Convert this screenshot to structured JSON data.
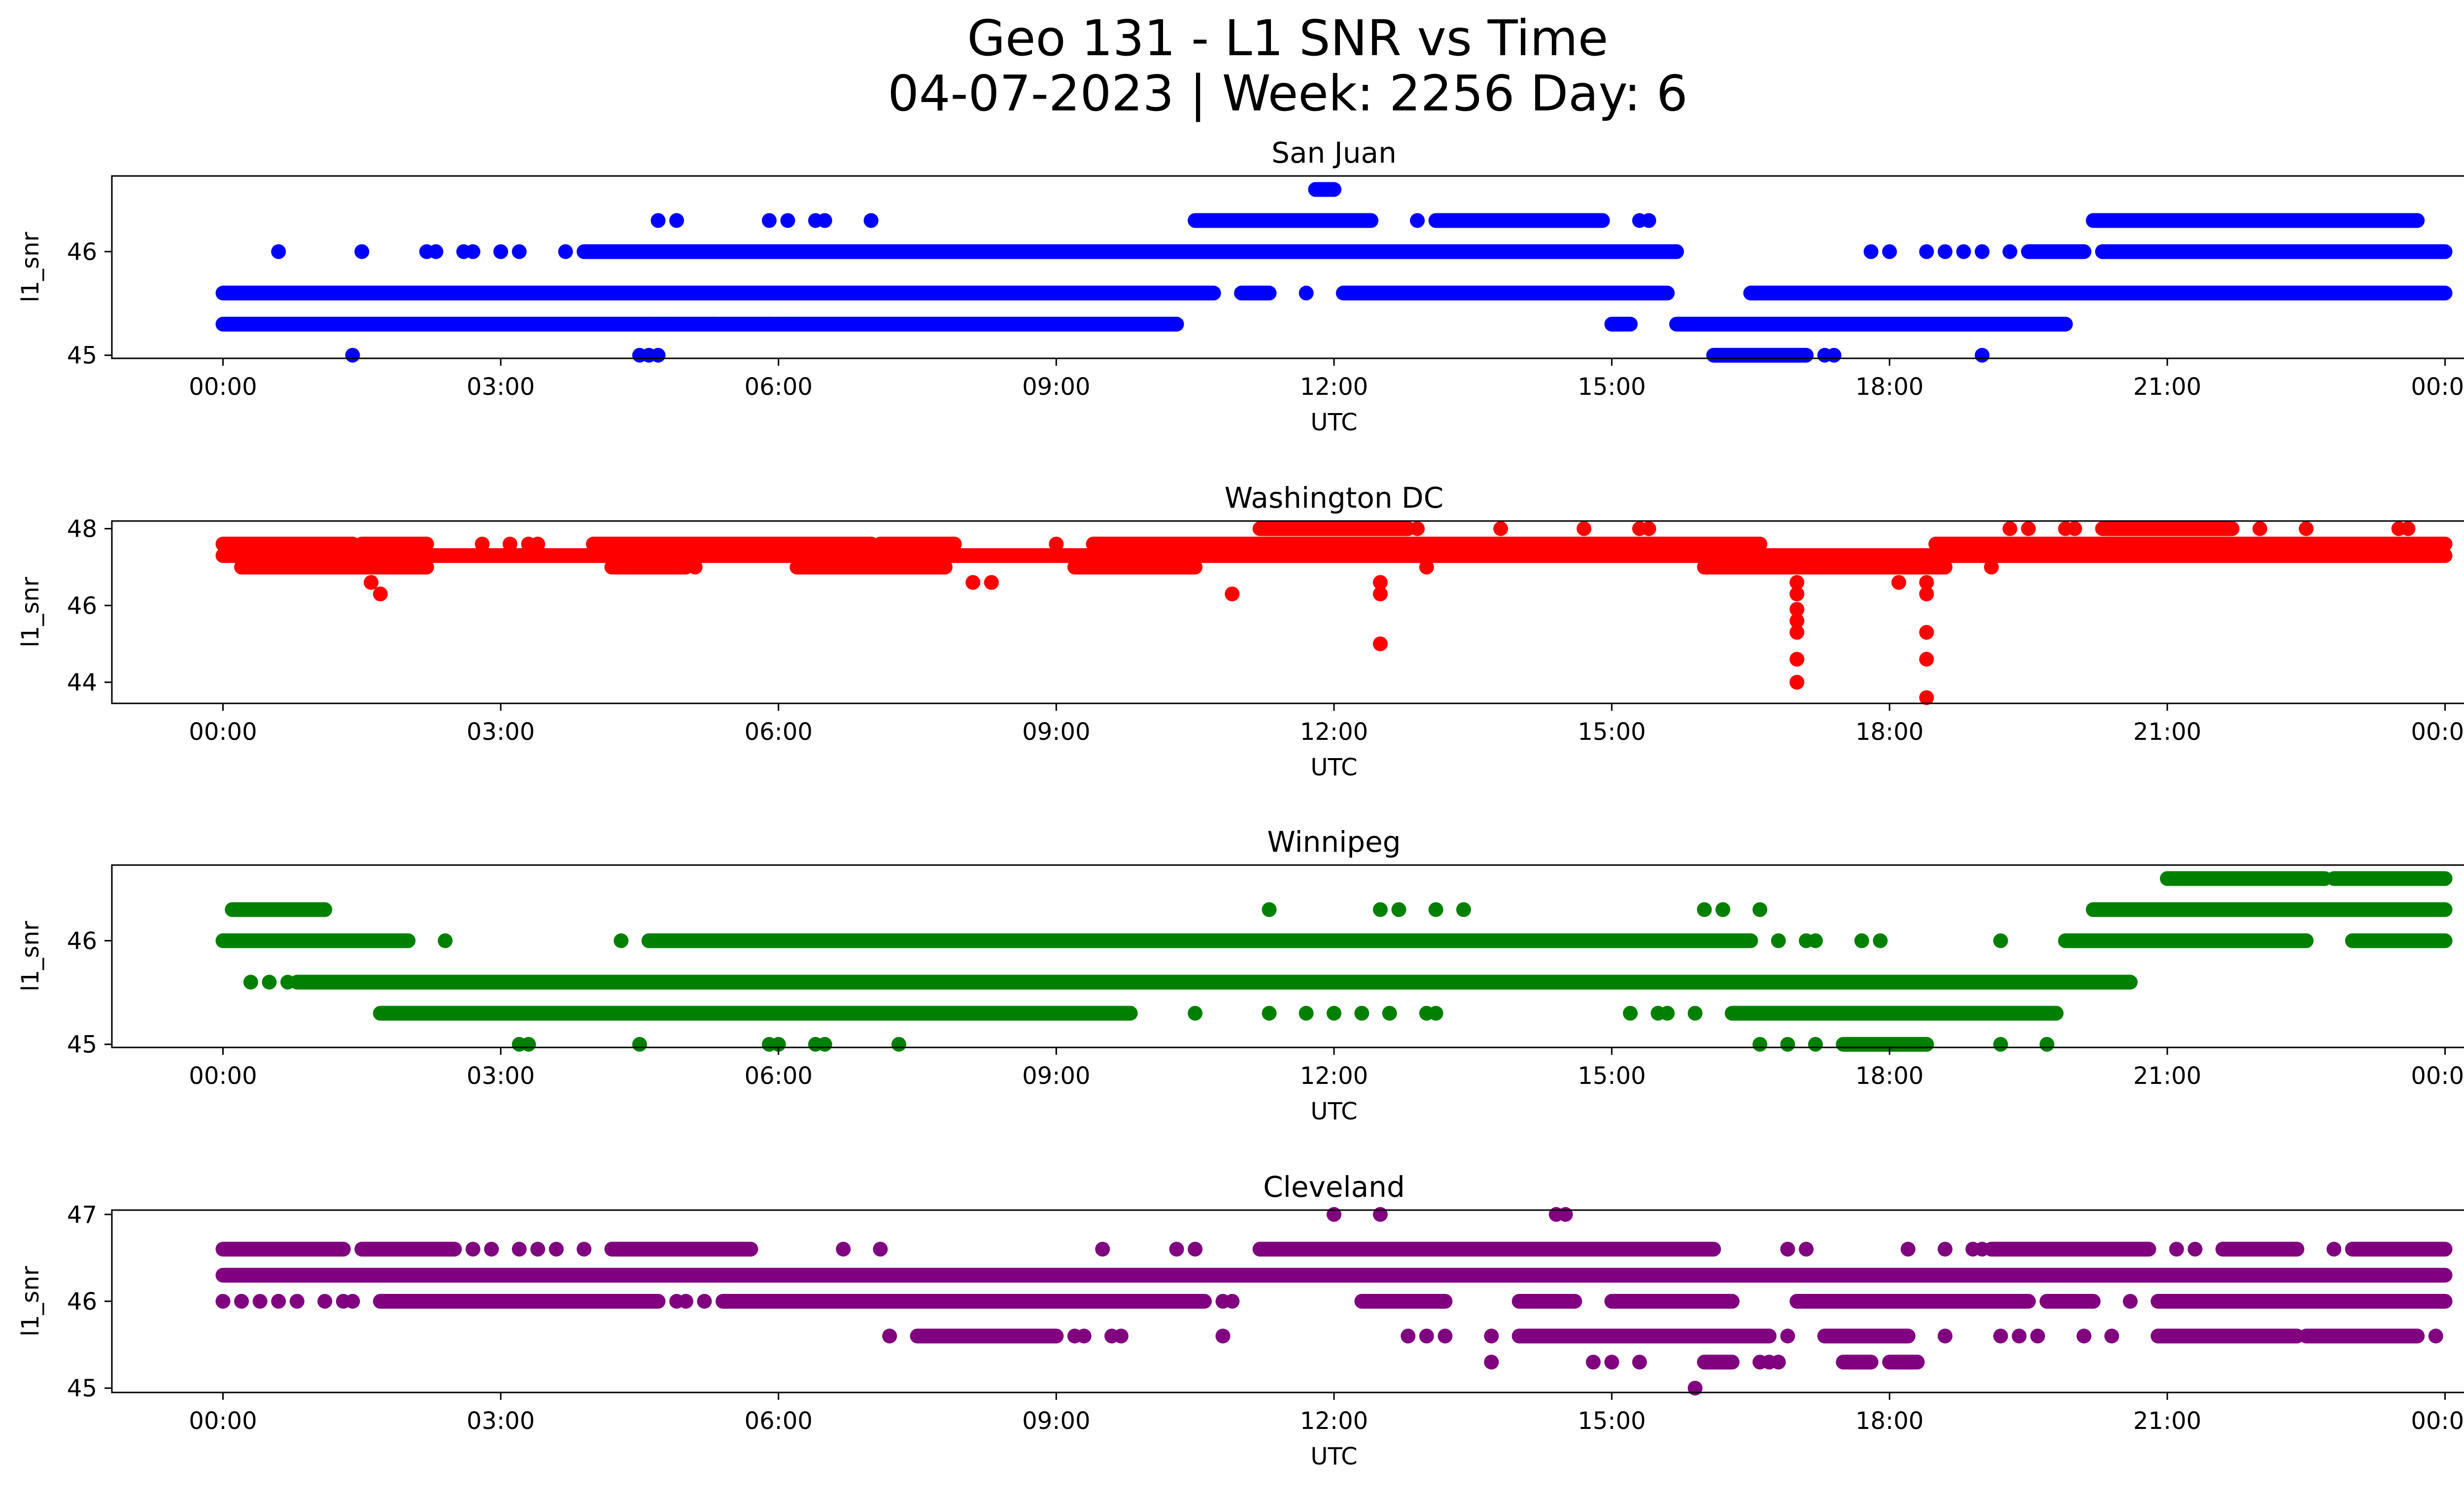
{
  "suptitle": {
    "line1": "Geo 131 - L1 SNR vs Time",
    "line2": "04-07-2023 | Week: 2256 Day: 6"
  },
  "chart_data": [
    {
      "type": "scatter",
      "title": "San Juan",
      "xlabel": "UTC",
      "ylabel": "l1_snr",
      "color": "#0000ff",
      "xticks": [
        "00:00",
        "03:00",
        "06:00",
        "09:00",
        "12:00",
        "15:00",
        "18:00",
        "21:00",
        "00:00"
      ],
      "yticks": [
        45,
        46
      ],
      "xlim": [
        -1.2,
        25.2
      ],
      "ylim": [
        44.97,
        46.73
      ],
      "levels": [
        {
          "y": 45.3,
          "segments": [
            [
              0,
              10.3
            ],
            [
              15.0,
              15.2
            ],
            [
              15.7,
              19.9
            ]
          ],
          "points": [
            4.6,
            4.8,
            5.3,
            5.6,
            5.9,
            6.1,
            8.8,
            9.4
          ]
        },
        {
          "y": 45.6,
          "segments": [
            [
              0,
              10.7
            ],
            [
              11.0,
              11.3
            ],
            [
              12.1,
              15.6
            ],
            [
              16.5,
              24.0
            ]
          ],
          "points": [
            11.7
          ]
        },
        {
          "y": 46.0,
          "segments": [
            [
              3.9,
              15.7
            ],
            [
              19.5,
              20.1
            ],
            [
              20.3,
              24.0
            ]
          ],
          "points": [
            0.6,
            1.5,
            2.2,
            2.3,
            2.6,
            2.7,
            3.0,
            3.2,
            3.7,
            17.8,
            18.0,
            18.4,
            18.6,
            18.8,
            19.0,
            19.3
          ]
        },
        {
          "y": 46.3,
          "segments": [
            [
              10.5,
              12.4
            ],
            [
              13.1,
              14.9
            ],
            [
              20.2,
              23.7
            ]
          ],
          "points": [
            4.7,
            4.9,
            5.9,
            6.1,
            6.4,
            6.5,
            7.0,
            12.9,
            15.3,
            15.4
          ]
        },
        {
          "y": 46.6,
          "segments": [
            [
              11.8,
              12.0
            ]
          ],
          "points": []
        },
        {
          "y": 45.0,
          "segments": [
            [
              16.1,
              17.1
            ]
          ],
          "points": [
            1.4,
            4.5,
            4.6,
            4.7,
            17.3,
            17.4,
            19.0
          ]
        }
      ]
    },
    {
      "type": "scatter",
      "title": "Washington DC",
      "xlabel": "UTC",
      "ylabel": "l1_snr",
      "color": "#ff0000",
      "xticks": [
        "00:00",
        "03:00",
        "06:00",
        "09:00",
        "12:00",
        "15:00",
        "18:00",
        "21:00",
        "00:00"
      ],
      "yticks": [
        44,
        46,
        48
      ],
      "xlim": [
        -1.2,
        25.2
      ],
      "ylim": [
        43.45,
        48.2
      ],
      "levels": [
        {
          "y": 47.0,
          "segments": [
            [
              0.2,
              2.2
            ],
            [
              4.2,
              5.0
            ],
            [
              6.2,
              7.8
            ],
            [
              9.2,
              10.5
            ],
            [
              16.0,
              18.6
            ]
          ],
          "points": [
            5.1,
            13.0,
            19.1
          ]
        },
        {
          "y": 47.3,
          "segments": [
            [
              0,
              24.0
            ]
          ],
          "points": []
        },
        {
          "y": 47.6,
          "segments": [
            [
              0,
              1.4
            ],
            [
              1.5,
              2.2
            ],
            [
              4.0,
              7.0
            ],
            [
              7.1,
              7.9
            ],
            [
              9.4,
              16.6
            ],
            [
              18.5,
              24.0
            ]
          ],
          "points": [
            2.8,
            3.1,
            3.3,
            3.4,
            9.0
          ]
        },
        {
          "y": 48.0,
          "segments": [
            [
              11.2,
              12.8
            ],
            [
              20.3,
              21.7
            ]
          ],
          "points": [
            12.9,
            13.8,
            14.7,
            15.3,
            15.4,
            19.3,
            19.5,
            19.9,
            20.0,
            22.0,
            22.5,
            23.5,
            23.6
          ]
        },
        {
          "y": 46.6,
          "segments": [],
          "points": [
            1.6,
            8.1,
            8.3,
            12.5,
            17.0,
            18.1,
            18.4
          ]
        },
        {
          "y": 46.3,
          "segments": [],
          "points": [
            1.7,
            10.9,
            12.5,
            17.0,
            18.4
          ]
        },
        {
          "y": 45.9,
          "segments": [],
          "points": [
            17.0
          ]
        },
        {
          "y": 45.6,
          "segments": [],
          "points": [
            17.0
          ]
        },
        {
          "y": 45.3,
          "segments": [],
          "points": [
            17.0,
            18.4
          ]
        },
        {
          "y": 45.0,
          "segments": [],
          "points": [
            12.5
          ]
        },
        {
          "y": 44.6,
          "segments": [],
          "points": [
            17.0,
            18.4
          ]
        },
        {
          "y": 44.0,
          "segments": [],
          "points": [
            17.0
          ]
        },
        {
          "y": 43.6,
          "segments": [],
          "points": [
            18.4
          ]
        }
      ]
    },
    {
      "type": "scatter",
      "title": "Winnipeg",
      "xlabel": "UTC",
      "ylabel": "l1_snr",
      "color": "#008000",
      "xticks": [
        "00:00",
        "03:00",
        "06:00",
        "09:00",
        "12:00",
        "15:00",
        "18:00",
        "21:00",
        "00:00"
      ],
      "yticks": [
        45,
        46
      ],
      "xlim": [
        -1.2,
        25.2
      ],
      "ylim": [
        44.97,
        46.73
      ],
      "levels": [
        {
          "y": 45.0,
          "segments": [
            [
              17.5,
              18.4
            ]
          ],
          "points": [
            3.2,
            3.3,
            4.5,
            5.9,
            6.0,
            6.4,
            6.5,
            7.3,
            16.6,
            16.9,
            17.2,
            18.4,
            19.2,
            19.7
          ]
        },
        {
          "y": 45.3,
          "segments": [
            [
              1.7,
              9.8
            ],
            [
              16.3,
              19.8
            ]
          ],
          "points": [
            10.5,
            11.3,
            11.7,
            12.0,
            12.3,
            12.6,
            13.0,
            13.1,
            15.2,
            15.5,
            15.6,
            15.9
          ]
        },
        {
          "y": 45.6,
          "segments": [
            [
              0.8,
              20.6
            ]
          ],
          "points": [
            0.3,
            0.5,
            0.7
          ]
        },
        {
          "y": 46.0,
          "segments": [
            [
              0,
              2.0
            ],
            [
              4.6,
              16.5
            ],
            [
              19.9,
              22.5
            ],
            [
              23.0,
              24.0
            ]
          ],
          "points": [
            2.4,
            4.3,
            16.8,
            17.1,
            17.2,
            17.7,
            17.9,
            19.2
          ]
        },
        {
          "y": 46.3,
          "segments": [
            [
              0.1,
              1.1
            ],
            [
              20.2,
              24.0
            ]
          ],
          "points": [
            11.3,
            12.5,
            12.7,
            13.1,
            13.4,
            16.0,
            16.2,
            16.6
          ]
        },
        {
          "y": 46.6,
          "segments": [
            [
              21.0,
              22.7
            ],
            [
              22.8,
              24.0
            ]
          ],
          "points": []
        }
      ]
    },
    {
      "type": "scatter",
      "title": "Cleveland",
      "xlabel": "UTC",
      "ylabel": "l1_snr",
      "color": "#800080",
      "xticks": [
        "00:00",
        "03:00",
        "06:00",
        "09:00",
        "12:00",
        "15:00",
        "18:00",
        "21:00",
        "00:00"
      ],
      "yticks": [
        45,
        46,
        47
      ],
      "xlim": [
        -1.2,
        25.2
      ],
      "ylim": [
        44.95,
        47.05
      ],
      "levels": [
        {
          "y": 46.3,
          "segments": [
            [
              0,
              24.0
            ]
          ],
          "points": []
        },
        {
          "y": 46.6,
          "segments": [
            [
              0,
              1.3
            ],
            [
              1.5,
              2.5
            ],
            [
              4.2,
              5.7
            ],
            [
              11.2,
              16.1
            ],
            [
              19.1,
              20.8
            ],
            [
              21.6,
              22.4
            ],
            [
              23.0,
              24.0
            ]
          ],
          "points": [
            2.7,
            2.9,
            3.2,
            3.4,
            3.6,
            3.9,
            6.7,
            7.1,
            9.5,
            10.3,
            10.5,
            16.9,
            17.1,
            18.2,
            18.6,
            18.9,
            19.0,
            21.1,
            21.3,
            22.8
          ]
        },
        {
          "y": 46.0,
          "segments": [
            [
              1.7,
              4.7
            ],
            [
              5.4,
              10.6
            ],
            [
              12.3,
              13.2
            ],
            [
              14.0,
              14.6
            ],
            [
              15.0,
              16.3
            ],
            [
              17.0,
              19.5
            ],
            [
              19.7,
              20.2
            ],
            [
              20.9,
              24.0
            ]
          ],
          "points": [
            0.0,
            0.2,
            0.4,
            0.6,
            0.8,
            1.1,
            1.3,
            1.4,
            4.9,
            5.0,
            5.2,
            10.8,
            10.9,
            20.6
          ]
        },
        {
          "y": 45.6,
          "segments": [
            [
              7.5,
              9.0
            ],
            [
              14.0,
              16.7
            ],
            [
              17.3,
              18.2
            ],
            [
              20.9,
              22.4
            ],
            [
              22.5,
              23.7
            ]
          ],
          "points": [
            7.2,
            9.2,
            9.3,
            9.6,
            9.7,
            10.8,
            12.8,
            13.0,
            13.2,
            13.7,
            16.9,
            18.6,
            19.2,
            19.4,
            19.6,
            20.1,
            20.4,
            23.9
          ]
        },
        {
          "y": 45.3,
          "segments": [
            [
              16.0,
              16.3
            ],
            [
              17.5,
              17.8
            ],
            [
              18.0,
              18.3
            ]
          ],
          "points": [
            13.7,
            14.8,
            15.0,
            15.3,
            16.6,
            16.7,
            16.8
          ]
        },
        {
          "y": 45.0,
          "segments": [],
          "points": [
            15.9
          ]
        },
        {
          "y": 47.0,
          "segments": [],
          "points": [
            12.0,
            12.5,
            14.4,
            14.5
          ]
        }
      ]
    }
  ]
}
